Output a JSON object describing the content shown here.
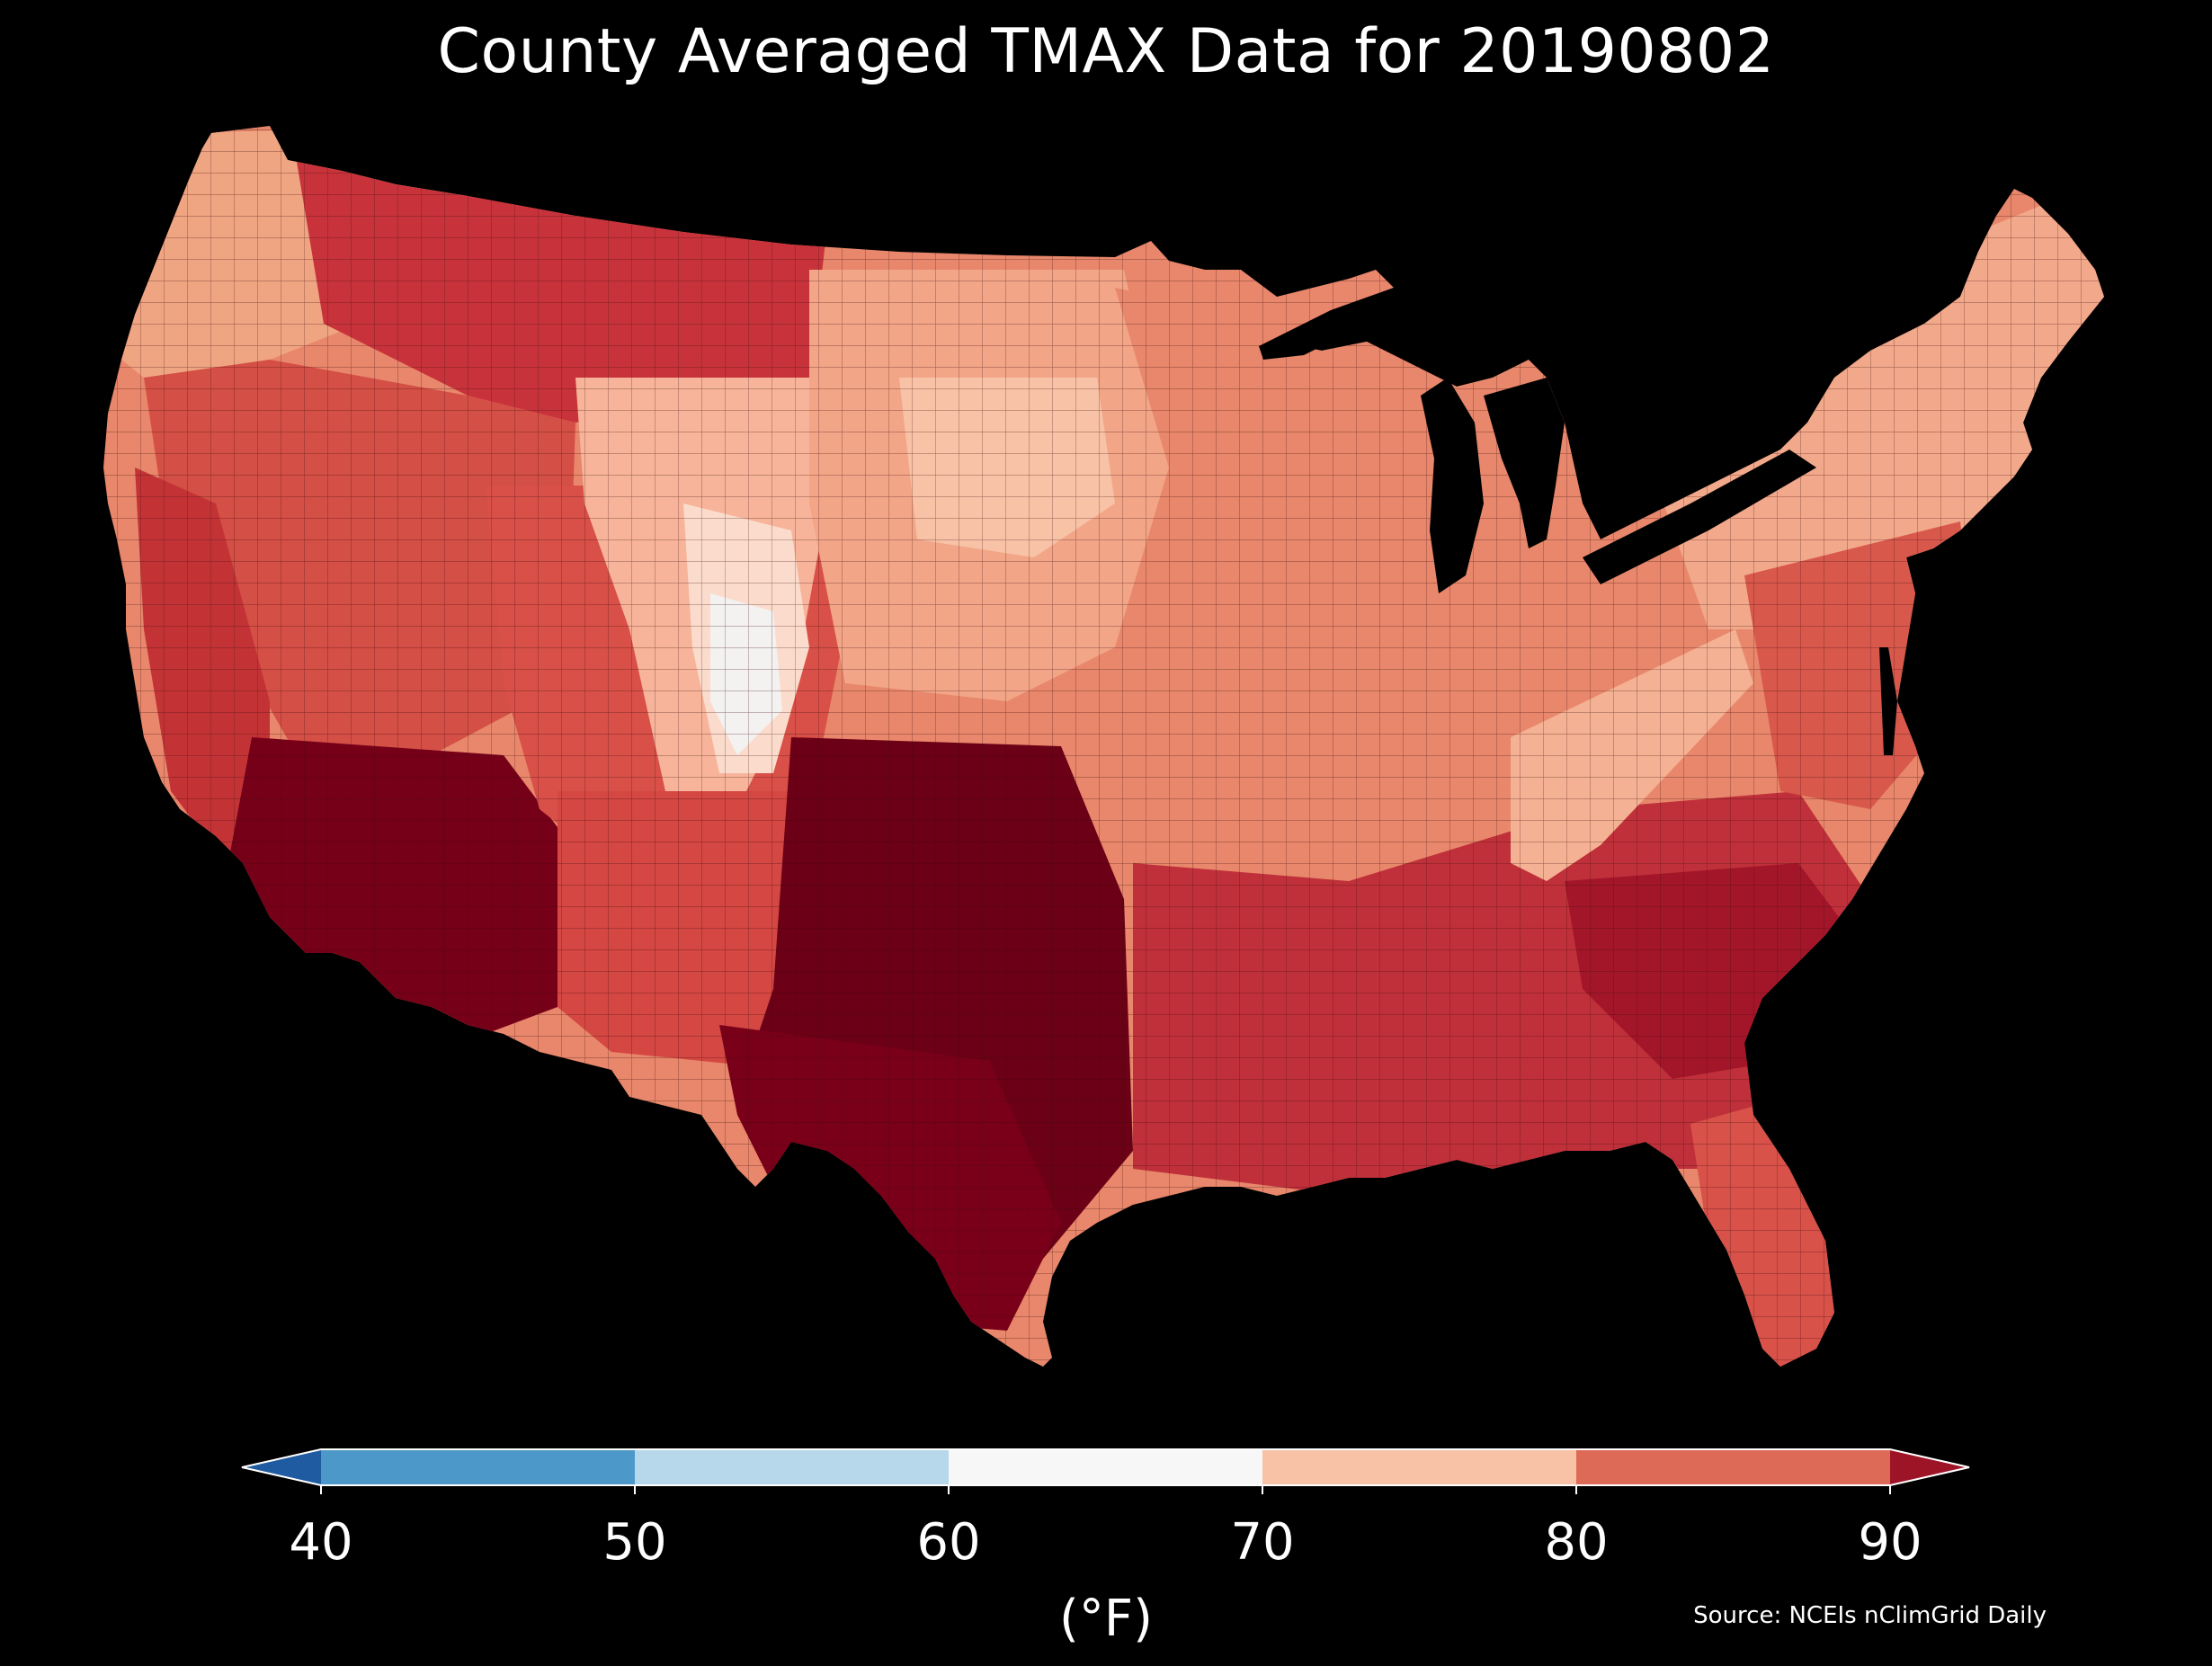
{
  "title": "County Averaged TMAX Data for 20190802",
  "source": "Source: NCEIs nClimGrid Daily",
  "colorbar": {
    "units": "(°F)",
    "extend": "both",
    "ticks": [
      "40",
      "50",
      "60",
      "70",
      "80",
      "90"
    ],
    "bins": [
      {
        "range": "<40",
        "color": "#1f5ba0"
      },
      {
        "range": "40-50",
        "color": "#4b98c9"
      },
      {
        "range": "50-60",
        "color": "#b6d8ea"
      },
      {
        "range": "60-70",
        "color": "#f7f7f7"
      },
      {
        "range": "70-80",
        "color": "#f8c2a6"
      },
      {
        "range": "80-90",
        "color": "#dc6a56"
      },
      {
        "range": ">90",
        "color": "#9e1427"
      }
    ]
  },
  "map": {
    "region": "Contiguous United States",
    "variable": "TMAX",
    "aggregation": "county average",
    "date": "20190802",
    "background": "#000000",
    "county_border_color": "#3a0a0a",
    "regions": [
      {
        "area": "Pacific Northwest",
        "bin": "70-80",
        "color": "#f0a582"
      },
      {
        "area": "Great Basin / interior West",
        "bin": "80-90",
        "color": "#d44f45"
      },
      {
        "area": "Rocky Mountains (CO/WY high terrain)",
        "bin": "60-70",
        "color": "#fbd7c4"
      },
      {
        "area": "Northern Plains",
        "bin": "80-90",
        "color": "#e58363"
      },
      {
        "area": "Desert Southwest",
        "bin": ">90",
        "color": "#770019"
      },
      {
        "area": "Texas / Southern Plains",
        "bin": ">90",
        "color": "#6c0016"
      },
      {
        "area": "Midwest / Ohio Valley",
        "bin": "80-90",
        "color": "#e8876b"
      },
      {
        "area": "Appalachians",
        "bin": "70-80",
        "color": "#f4b193"
      },
      {
        "area": "Southeast",
        "bin": ">90",
        "color": "#b8262e"
      },
      {
        "area": "Florida",
        "bin": "80-90",
        "color": "#d8524a"
      },
      {
        "area": "Northeast / New England",
        "bin": "70-80",
        "color": "#f2a88a"
      }
    ]
  }
}
